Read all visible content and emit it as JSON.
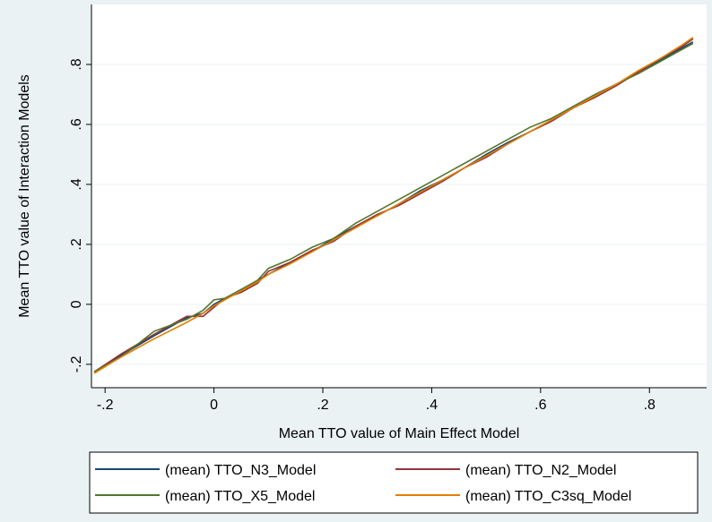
{
  "chart_data": {
    "type": "line",
    "xlabel": "Mean TTO value of Main Effect Model",
    "ylabel": "Mean TTO value of Interaction Models",
    "x": [
      -0.22,
      -0.17,
      -0.11,
      -0.05,
      -0.02,
      0,
      0.02,
      0.05,
      0.08,
      0.1,
      0.14,
      0.18,
      0.22,
      0.26,
      0.3,
      0.34,
      0.38,
      0.42,
      0.46,
      0.5,
      0.54,
      0.58,
      0.62,
      0.66,
      0.7,
      0.74,
      0.78,
      0.82,
      0.86,
      0.88
    ],
    "series": [
      {
        "name": "(mean) TTO_N3_Model",
        "color": "#1a476f",
        "values": [
          -0.225,
          -0.17,
          -0.105,
          -0.045,
          -0.03,
          0.0,
          0.02,
          0.045,
          0.08,
          0.1,
          0.14,
          0.175,
          0.22,
          0.26,
          0.295,
          0.335,
          0.38,
          0.415,
          0.455,
          0.5,
          0.54,
          0.575,
          0.615,
          0.655,
          0.695,
          0.735,
          0.775,
          0.815,
          0.855,
          0.875
        ]
      },
      {
        "name": "(mean) TTO_N2_Model",
        "color": "#90353b",
        "values": [
          -0.225,
          -0.165,
          -0.1,
          -0.04,
          -0.04,
          -0.01,
          0.02,
          0.04,
          0.07,
          0.11,
          0.14,
          0.18,
          0.21,
          0.26,
          0.3,
          0.33,
          0.37,
          0.41,
          0.455,
          0.49,
          0.535,
          0.575,
          0.61,
          0.655,
          0.69,
          0.73,
          0.775,
          0.82,
          0.86,
          0.885
        ]
      },
      {
        "name": "(mean) TTO_X5_Model",
        "color": "#55752f",
        "values": [
          -0.225,
          -0.175,
          -0.09,
          -0.05,
          -0.02,
          0.015,
          0.02,
          0.05,
          0.08,
          0.12,
          0.15,
          0.19,
          0.22,
          0.27,
          0.31,
          0.35,
          0.39,
          0.43,
          0.47,
          0.51,
          0.55,
          0.59,
          0.62,
          0.66,
          0.7,
          0.735,
          0.77,
          0.81,
          0.85,
          0.87
        ]
      },
      {
        "name": "(mean) TTO_C3sq_Model",
        "color": "#e37e00",
        "values": [
          -0.23,
          -0.175,
          -0.115,
          -0.06,
          -0.03,
          -0.005,
          0.015,
          0.045,
          0.075,
          0.1,
          0.135,
          0.175,
          0.215,
          0.255,
          0.295,
          0.335,
          0.375,
          0.415,
          0.455,
          0.495,
          0.535,
          0.575,
          0.615,
          0.655,
          0.695,
          0.735,
          0.78,
          0.82,
          0.865,
          0.89
        ]
      }
    ],
    "xlim": [
      -0.225,
      0.905
    ],
    "ylim": [
      -0.278,
      1.0
    ],
    "xticks": [
      {
        "value": -0.2,
        "label": "-.2"
      },
      0,
      {
        "value": 0.2,
        "label": ".2"
      },
      {
        "value": 0.4,
        "label": ".4"
      },
      {
        "value": 0.6,
        "label": ".6"
      },
      {
        "value": 0.8,
        "label": ".8"
      }
    ],
    "yticks": [
      {
        "value": -0.2,
        "label": "-.2"
      },
      0,
      {
        "value": 0.2,
        "label": ".2"
      },
      {
        "value": 0.4,
        "label": ".4"
      },
      {
        "value": 0.6,
        "label": ".6"
      },
      {
        "value": 0.8,
        "label": ".8"
      }
    ],
    "grid": true
  }
}
